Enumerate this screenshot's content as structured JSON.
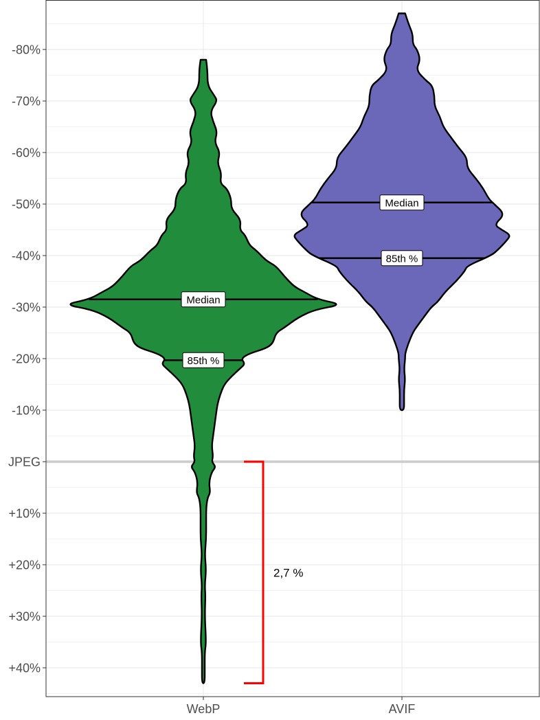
{
  "chart_data": {
    "type": "violin",
    "title": "",
    "xlabel": "",
    "ylabel": "",
    "categories": [
      "WebP",
      "AVIF"
    ],
    "y_tick_values": [
      -80,
      -70,
      -60,
      -50,
      -40,
      -30,
      -20,
      -10,
      0,
      10,
      20,
      30,
      40
    ],
    "y_tick_labels": [
      "-80%",
      "-70%",
      "-60%",
      "-50%",
      "-40%",
      "-30%",
      "-20%",
      "-10%",
      "JPEG",
      "+10%",
      "+20%",
      "+30%",
      "+40%"
    ],
    "ylim": [
      -88,
      45
    ],
    "y_reversed": true,
    "grid": true,
    "reference_line": {
      "value": 0,
      "label": "JPEG",
      "color": "#cccccc"
    },
    "series": [
      {
        "name": "WebP",
        "color": "#218c3c",
        "median": -31.5,
        "p85": -19.7,
        "median_label": "Median",
        "p85_label": "85th %",
        "density": [
          [
            -78,
            0.02
          ],
          [
            -76,
            0.03
          ],
          [
            -73,
            0.03
          ],
          [
            -71,
            0.08
          ],
          [
            -70,
            0.1
          ],
          [
            -68,
            0.05
          ],
          [
            -66,
            0.07
          ],
          [
            -64,
            0.1
          ],
          [
            -62,
            0.08
          ],
          [
            -60,
            0.12
          ],
          [
            -58,
            0.1
          ],
          [
            -56,
            0.13
          ],
          [
            -54,
            0.12
          ],
          [
            -53,
            0.17
          ],
          [
            -51,
            0.2
          ],
          [
            -49,
            0.2
          ],
          [
            -47,
            0.27
          ],
          [
            -45,
            0.26
          ],
          [
            -44,
            0.3
          ],
          [
            -42,
            0.33
          ],
          [
            -41,
            0.38
          ],
          [
            -39,
            0.45
          ],
          [
            -38,
            0.52
          ],
          [
            -36,
            0.58
          ],
          [
            -34,
            0.65
          ],
          [
            -33,
            0.72
          ],
          [
            -31.5,
            0.82
          ],
          [
            -30.5,
            1.0
          ],
          [
            -29.5,
            0.8
          ],
          [
            -28,
            0.68
          ],
          [
            -26,
            0.58
          ],
          [
            -25,
            0.52
          ],
          [
            -23,
            0.5
          ],
          [
            -22,
            0.45
          ],
          [
            -21,
            0.33
          ],
          [
            -20,
            0.27
          ],
          [
            -19,
            0.3
          ],
          [
            -18,
            0.26
          ],
          [
            -16.5,
            0.2
          ],
          [
            -15,
            0.15
          ],
          [
            -13,
            0.12
          ],
          [
            -11,
            0.1
          ],
          [
            -9,
            0.09
          ],
          [
            -7,
            0.08
          ],
          [
            -5,
            0.07
          ],
          [
            -3,
            0.06
          ],
          [
            -1,
            0.07
          ],
          [
            0,
            0.06
          ],
          [
            1,
            0.09
          ],
          [
            2,
            0.06
          ],
          [
            4,
            0.04
          ],
          [
            6,
            0.05
          ],
          [
            7,
            0.03
          ],
          [
            9,
            0.02
          ],
          [
            12,
            0.02
          ],
          [
            15,
            0.02
          ],
          [
            18,
            0.01
          ],
          [
            21,
            0.02
          ],
          [
            24,
            0.01
          ],
          [
            26,
            0.015
          ],
          [
            30,
            0.01
          ],
          [
            35,
            0.02
          ],
          [
            37,
            0.01
          ],
          [
            40,
            0.01
          ],
          [
            43,
            0.01
          ]
        ]
      },
      {
        "name": "AVIF",
        "color": "#6b67b9",
        "median": -50.3,
        "p85": -39.5,
        "median_label": "Median",
        "p85_label": "85th %",
        "density": [
          [
            -87,
            0.03
          ],
          [
            -85,
            0.06
          ],
          [
            -83,
            0.1
          ],
          [
            -81,
            0.1
          ],
          [
            -80,
            0.14
          ],
          [
            -78,
            0.17
          ],
          [
            -76,
            0.13
          ],
          [
            -74,
            0.22
          ],
          [
            -73,
            0.28
          ],
          [
            -71,
            0.3
          ],
          [
            -69,
            0.3
          ],
          [
            -67,
            0.35
          ],
          [
            -65,
            0.38
          ],
          [
            -63,
            0.45
          ],
          [
            -61,
            0.52
          ],
          [
            -59,
            0.6
          ],
          [
            -57,
            0.6
          ],
          [
            -55,
            0.68
          ],
          [
            -53,
            0.75
          ],
          [
            -51,
            0.8
          ],
          [
            -50,
            0.85
          ],
          [
            -48,
            0.95
          ],
          [
            -46,
            0.85
          ],
          [
            -45,
            0.92
          ],
          [
            -44,
            1.0
          ],
          [
            -43,
            0.97
          ],
          [
            -41,
            0.88
          ],
          [
            -40,
            0.82
          ],
          [
            -38,
            0.6
          ],
          [
            -37,
            0.58
          ],
          [
            -35,
            0.5
          ],
          [
            -33,
            0.4
          ],
          [
            -31,
            0.33
          ],
          [
            -30,
            0.27
          ],
          [
            -28,
            0.2
          ],
          [
            -26,
            0.13
          ],
          [
            -25,
            0.1
          ],
          [
            -23,
            0.06
          ],
          [
            -21,
            0.03
          ],
          [
            -20,
            0.03
          ],
          [
            -18,
            0.02
          ],
          [
            -16,
            0.03
          ],
          [
            -14,
            0.02
          ],
          [
            -12,
            0.02
          ],
          [
            -10,
            0.02
          ]
        ]
      }
    ],
    "annotation": {
      "from": 0,
      "to": 43,
      "label": "2,7 %",
      "color": "#ff0000"
    }
  }
}
